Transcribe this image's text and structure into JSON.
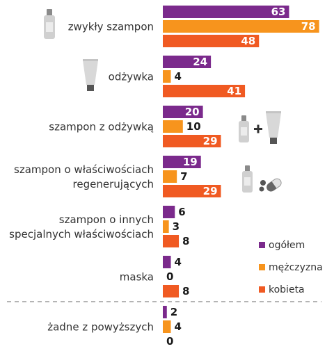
{
  "chart_data": {
    "type": "bar",
    "orientation": "horizontal",
    "categories": [
      [
        "zwykły szampon"
      ],
      [
        "odżywka"
      ],
      [
        "szampon z odżywką"
      ],
      [
        "szampon o właściwościach",
        "regenerujących"
      ],
      [
        "szampon o innych",
        "specjalnych właściwościach"
      ],
      [
        "maska"
      ],
      [
        "żadne z powyższych"
      ]
    ],
    "series": [
      {
        "name": "ogółem",
        "color": "#7b2a8c",
        "values": [
          63,
          24,
          20,
          19,
          6,
          4,
          2
        ]
      },
      {
        "name": "mężczyzna",
        "color": "#f7941d",
        "values": [
          78,
          4,
          10,
          7,
          3,
          0,
          4
        ]
      },
      {
        "name": "kobieta",
        "color": "#f05a22",
        "values": [
          48,
          41,
          29,
          29,
          8,
          8,
          0
        ]
      }
    ],
    "legend_position": "right",
    "grid": false,
    "icons": [
      "shampoo-bottle-icon",
      "conditioner-tube-icon",
      "shampoo-plus-conditioner-icon",
      "shampoo-with-capsules-icon"
    ]
  }
}
